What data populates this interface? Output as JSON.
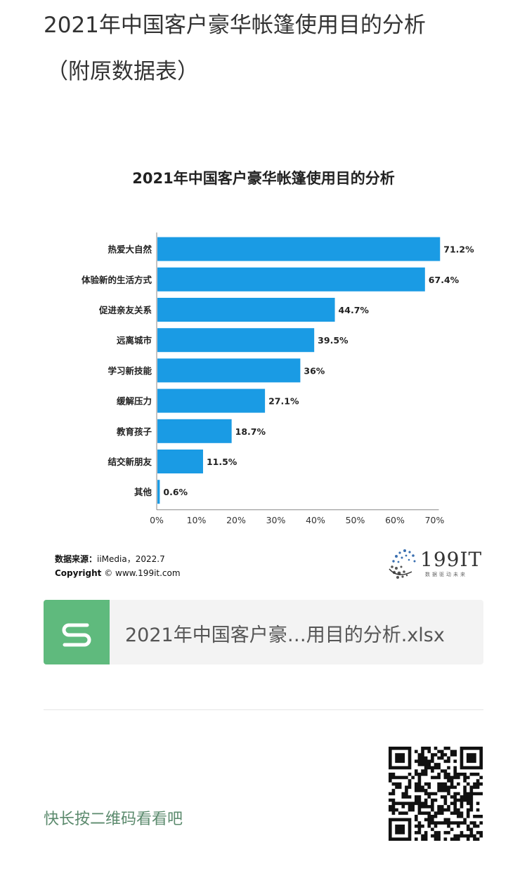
{
  "article": {
    "title_line1": "2021年中国客户豪华帐篷使用目的分析",
    "title_line2": "（附原数据表）"
  },
  "chart": {
    "source_label": "数据来源：",
    "source_value": "iiMedia，2022.7",
    "copyright_label": "Copyright",
    "copyright_value": "© www.199it.com",
    "logo_text": "199IT",
    "logo_subtext": "数据驱动未来"
  },
  "chart_data": {
    "type": "bar",
    "orientation": "horizontal",
    "title": "2021年中国客户豪华帐篷使用目的分析",
    "categories": [
      "热爱大自然",
      "体验新的生活方式",
      "促进亲友关系",
      "远离城市",
      "学习新技能",
      "缓解压力",
      "教育孩子",
      "结交新朋友",
      "其他"
    ],
    "values": [
      71.2,
      67.4,
      44.7,
      39.5,
      36,
      27.1,
      18.7,
      11.5,
      0.6
    ],
    "value_labels": [
      "71.2%",
      "67.4%",
      "44.7%",
      "39.5%",
      "36%",
      "27.1%",
      "18.7%",
      "11.5%",
      "0.6%"
    ],
    "x_ticks": [
      "0%",
      "10%",
      "20%",
      "30%",
      "40%",
      "50%",
      "60%",
      "70%"
    ],
    "xlim": [
      0,
      70
    ],
    "grid": false,
    "bar_color": "#1a9be4"
  },
  "attachment": {
    "icon_letter": "S",
    "icon_color": "#5fba7d",
    "file_name": "2021年中国客户豪…用目的分析.xlsx"
  },
  "footer": {
    "qr_hint": "快长按二维码看看吧"
  }
}
